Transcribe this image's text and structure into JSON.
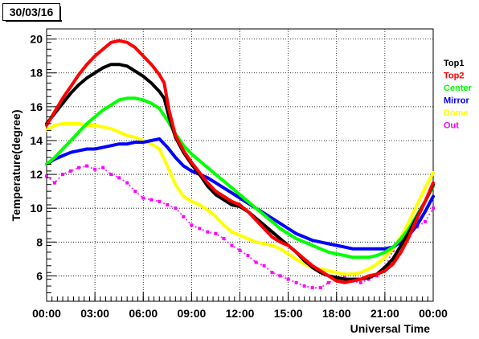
{
  "date_label": "30/03/16",
  "chart_data": {
    "type": "scatter",
    "xlabel": "Universal Time",
    "ylabel": "Temperature(degree)",
    "xlim": [
      0,
      24
    ],
    "ylim": [
      4.5,
      20.6
    ],
    "x_ticks": [
      {
        "value": 0,
        "label": "00:00"
      },
      {
        "value": 3,
        "label": "03:00"
      },
      {
        "value": 6,
        "label": "06:00"
      },
      {
        "value": 9,
        "label": "09:00"
      },
      {
        "value": 12,
        "label": "12:00"
      },
      {
        "value": 15,
        "label": "15:00"
      },
      {
        "value": 18,
        "label": "18:00"
      },
      {
        "value": 21,
        "label": "21:00"
      },
      {
        "value": 24,
        "label": "00:00"
      }
    ],
    "y_ticks": [
      {
        "value": 6,
        "label": "6"
      },
      {
        "value": 8,
        "label": "8"
      },
      {
        "value": 10,
        "label": "10"
      },
      {
        "value": 12,
        "label": "12"
      },
      {
        "value": 14,
        "label": "14"
      },
      {
        "value": 16,
        "label": "16"
      },
      {
        "value": 18,
        "label": "18"
      },
      {
        "value": 20,
        "label": "20"
      }
    ],
    "grid": true,
    "legend_position": "right",
    "series": [
      {
        "name": "Top1",
        "color": "#000000",
        "x": [
          0,
          0.5,
          1,
          1.5,
          2,
          2.5,
          3,
          3.5,
          4,
          4.5,
          5,
          5.5,
          6,
          6.5,
          7,
          7.3,
          7.6,
          8,
          8.5,
          9,
          9.5,
          10,
          10.5,
          11,
          11.5,
          12,
          12.5,
          13,
          13.5,
          14,
          14.5,
          15,
          15.5,
          16,
          16.5,
          17,
          17.5,
          18,
          18.5,
          19,
          19.5,
          20,
          20.5,
          21,
          21.5,
          22,
          22.5,
          23,
          23.5,
          24
        ],
        "y": [
          15.0,
          15.6,
          16.2,
          16.8,
          17.3,
          17.7,
          18.0,
          18.3,
          18.5,
          18.5,
          18.4,
          18.1,
          17.8,
          17.4,
          16.9,
          16.5,
          15.4,
          14.2,
          13.3,
          12.6,
          12.0,
          11.3,
          10.8,
          10.5,
          10.2,
          10.1,
          9.8,
          9.4,
          9.0,
          8.6,
          8.2,
          7.8,
          7.4,
          6.9,
          6.5,
          6.2,
          6.0,
          5.9,
          5.8,
          5.8,
          5.8,
          5.9,
          6.1,
          6.5,
          7.0,
          7.8,
          8.6,
          9.5,
          10.4,
          11.4
        ]
      },
      {
        "name": "Top2",
        "color": "#ff0000",
        "x": [
          0,
          0.5,
          1,
          1.5,
          2,
          2.5,
          3,
          3.5,
          4,
          4.5,
          5,
          5.5,
          6,
          6.5,
          7,
          7.3,
          7.6,
          8,
          8.5,
          9,
          9.5,
          10,
          10.5,
          11,
          11.5,
          12,
          12.5,
          13,
          13.5,
          14,
          14.5,
          15,
          15.5,
          16,
          16.5,
          17,
          17.5,
          18,
          18.5,
          19,
          19.5,
          20,
          20.5,
          21,
          21.5,
          22,
          22.5,
          23,
          23.5,
          24
        ],
        "y": [
          14.9,
          15.7,
          16.5,
          17.2,
          17.9,
          18.5,
          19.0,
          19.4,
          19.8,
          19.9,
          19.8,
          19.5,
          19.0,
          18.5,
          17.9,
          17.4,
          15.8,
          14.3,
          13.4,
          12.7,
          12.1,
          11.5,
          11.0,
          10.7,
          10.4,
          10.2,
          9.8,
          9.3,
          8.8,
          8.3,
          8.0,
          7.8,
          7.4,
          7.0,
          6.6,
          6.3,
          6.0,
          5.7,
          5.6,
          5.7,
          5.8,
          6.0,
          6.1,
          6.3,
          6.7,
          7.4,
          8.3,
          9.4,
          10.4,
          11.5
        ]
      },
      {
        "name": "Center",
        "color": "#00ff00",
        "x": [
          0,
          0.5,
          1,
          1.5,
          2,
          2.5,
          3,
          3.5,
          4,
          4.5,
          5,
          5.5,
          6,
          6.5,
          7,
          7.5,
          8,
          8.5,
          9,
          9.5,
          10,
          10.5,
          11,
          11.5,
          12,
          12.5,
          13,
          13.5,
          14,
          14.5,
          15,
          15.5,
          16,
          16.5,
          17,
          17.5,
          18,
          18.5,
          19,
          19.5,
          20,
          20.5,
          21,
          21.5,
          22,
          22.5,
          23,
          23.5,
          24
        ],
        "y": [
          12.6,
          13.0,
          13.5,
          14.0,
          14.5,
          15.0,
          15.4,
          15.8,
          16.1,
          16.4,
          16.5,
          16.5,
          16.4,
          16.2,
          15.9,
          15.2,
          14.4,
          13.7,
          13.2,
          12.8,
          12.4,
          12.0,
          11.6,
          11.2,
          10.8,
          10.4,
          10.0,
          9.6,
          9.2,
          8.8,
          8.5,
          8.2,
          8.0,
          7.8,
          7.6,
          7.4,
          7.3,
          7.2,
          7.1,
          7.1,
          7.1,
          7.2,
          7.4,
          7.7,
          8.2,
          8.8,
          9.6,
          10.4,
          11.3
        ]
      },
      {
        "name": "Mirror",
        "color": "#0000ff",
        "x": [
          0,
          0.5,
          1,
          1.5,
          2,
          2.5,
          3,
          3.5,
          4,
          4.5,
          5,
          5.5,
          6,
          6.5,
          7,
          7.5,
          8,
          8.5,
          9,
          9.5,
          10,
          10.5,
          11,
          11.5,
          12,
          12.5,
          13,
          13.5,
          14,
          14.5,
          15,
          15.5,
          16,
          16.5,
          17,
          17.5,
          18,
          18.5,
          19,
          19.5,
          20,
          20.5,
          21,
          21.5,
          22,
          22.5,
          23,
          23.5,
          24
        ],
        "y": [
          12.6,
          12.9,
          13.1,
          13.3,
          13.4,
          13.5,
          13.5,
          13.6,
          13.7,
          13.8,
          13.8,
          13.9,
          13.9,
          14.0,
          14.1,
          13.6,
          13.0,
          12.5,
          12.2,
          12.0,
          11.8,
          11.5,
          11.2,
          10.9,
          10.6,
          10.3,
          10.0,
          9.7,
          9.4,
          9.1,
          8.8,
          8.5,
          8.3,
          8.1,
          8.0,
          7.9,
          7.8,
          7.7,
          7.6,
          7.6,
          7.6,
          7.6,
          7.6,
          7.7,
          8.0,
          8.4,
          9.0,
          9.8,
          10.7
        ]
      },
      {
        "name": "Dome",
        "color": "#ffff00",
        "x": [
          0,
          0.5,
          1,
          1.5,
          2,
          2.5,
          3,
          3.5,
          4,
          4.5,
          5,
          5.5,
          6,
          6.5,
          7,
          7.5,
          8,
          8.5,
          9,
          9.5,
          10,
          10.5,
          11,
          11.5,
          12,
          12.5,
          13,
          13.5,
          14,
          14.5,
          15,
          15.5,
          16,
          16.5,
          17,
          17.5,
          18,
          18.5,
          19,
          19.5,
          20,
          20.5,
          21,
          21.5,
          22,
          22.5,
          23,
          23.5,
          24
        ],
        "y": [
          14.6,
          14.9,
          15.0,
          15.0,
          15.0,
          14.9,
          14.9,
          14.8,
          14.7,
          14.5,
          14.3,
          14.2,
          14.0,
          13.8,
          13.5,
          12.5,
          11.4,
          10.7,
          10.4,
          10.2,
          9.9,
          9.5,
          9.0,
          8.6,
          8.4,
          8.2,
          8.0,
          7.9,
          7.8,
          7.6,
          7.3,
          7.0,
          6.7,
          6.5,
          6.4,
          6.3,
          6.2,
          6.1,
          6.1,
          6.2,
          6.4,
          6.7,
          7.1,
          7.6,
          8.3,
          9.2,
          10.2,
          11.2,
          12.1
        ]
      },
      {
        "name": "Out",
        "color": "#ff00ff",
        "x": [
          0,
          0.5,
          1,
          1.5,
          2,
          2.5,
          3,
          3.5,
          4,
          4.5,
          5,
          5.5,
          6,
          6.5,
          7,
          7.5,
          8,
          8.5,
          9,
          9.5,
          10,
          10.5,
          11,
          11.5,
          12,
          12.5,
          13,
          13.5,
          14,
          14.5,
          15,
          15.5,
          16,
          16.5,
          17,
          17.5,
          18,
          18.5,
          19,
          19.5,
          20,
          20.5,
          21,
          21.5,
          22,
          22.5,
          23,
          23.5,
          24
        ],
        "y": [
          11.9,
          11.5,
          12.0,
          12.2,
          12.4,
          12.5,
          12.3,
          12.4,
          12.0,
          11.8,
          11.5,
          11.0,
          10.6,
          10.5,
          10.4,
          10.2,
          10.0,
          9.5,
          9.0,
          8.8,
          8.6,
          8.5,
          8.2,
          7.8,
          7.5,
          7.2,
          6.8,
          6.6,
          6.2,
          6.0,
          5.8,
          5.6,
          5.4,
          5.3,
          5.3,
          5.6,
          5.8,
          5.9,
          5.7,
          5.6,
          5.8,
          6.0,
          6.5,
          7.5,
          8.2,
          8.7,
          8.9,
          9.2,
          10.0
        ]
      }
    ]
  }
}
